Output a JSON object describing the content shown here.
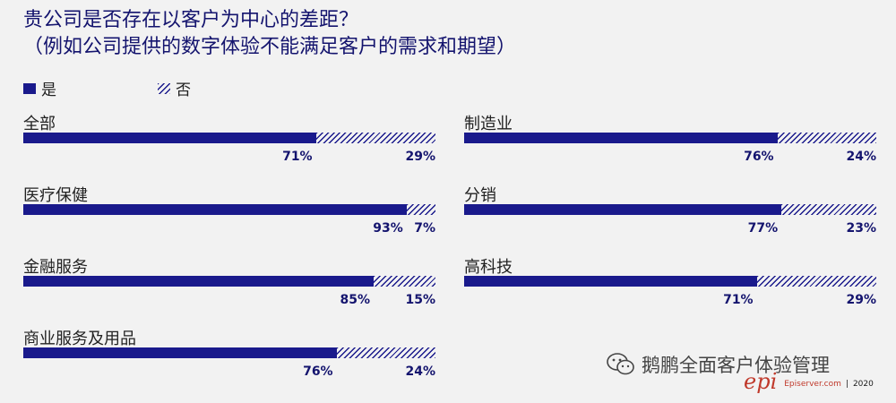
{
  "title_line1": "贵公司是否存在以客户为中心的差距？",
  "title_line2": "（例如公司提供的数字体验不能满足客户的需求和期望）",
  "legend": {
    "yes": "是",
    "no": "否"
  },
  "colors": {
    "bar": "#1a1a8c",
    "background": "#f2f2f2",
    "brand": "#c0392b"
  },
  "watermark": {
    "text": "鹅鹏全面客户体验管理",
    "icon": "wechat-icon"
  },
  "brand": {
    "logo": "epi",
    "site": "Episerver.com",
    "separator": "|",
    "year": "2020"
  },
  "chart_data": {
    "type": "bar",
    "orientation": "horizontal-stacked-100",
    "title": "贵公司是否存在以客户为中心的差距？（例如公司提供的数字体验不能满足客户的需求和期望）",
    "series_names": [
      "是",
      "否"
    ],
    "categories": [
      "全部",
      "医疗保健",
      "金融服务",
      "商业服务及用品",
      "制造业",
      "分销",
      "高科技"
    ],
    "rows": [
      {
        "category": "全部",
        "yes": 71,
        "no": 29,
        "yes_label": "71%",
        "no_label": "29%"
      },
      {
        "category": "医疗保健",
        "yes": 93,
        "no": 7,
        "yes_label": "93%",
        "no_label": "7%"
      },
      {
        "category": "金融服务",
        "yes": 85,
        "no": 15,
        "yes_label": "85%",
        "no_label": "15%"
      },
      {
        "category": "商业服务及用品",
        "yes": 76,
        "no": 24,
        "yes_label": "76%",
        "no_label": "24%"
      },
      {
        "category": "制造业",
        "yes": 76,
        "no": 24,
        "yes_label": "76%",
        "no_label": "24%"
      },
      {
        "category": "分销",
        "yes": 77,
        "no": 23,
        "yes_label": "77%",
        "no_label": "23%"
      },
      {
        "category": "高科技",
        "yes": 71,
        "no": 29,
        "yes_label": "71%",
        "no_label": "29%"
      }
    ],
    "xlim": [
      0,
      100
    ],
    "legend_position": "top-left",
    "grid": false
  }
}
